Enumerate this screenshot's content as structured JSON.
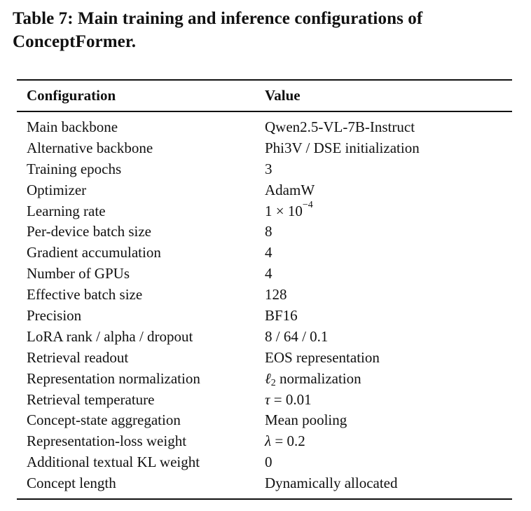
{
  "caption": "Table 7: Main training and inference configurations of ConceptFormer.",
  "headers": {
    "configuration": "Configuration",
    "value": "Value"
  },
  "rows": [
    {
      "config": "Main backbone",
      "value": "Qwen2.5-VL-7B-Instruct"
    },
    {
      "config": "Alternative backbone",
      "value": "Phi3V / DSE initialization"
    },
    {
      "config": "Training epochs",
      "value": "3"
    },
    {
      "config": "Optimizer",
      "value": "AdamW"
    },
    {
      "config": "Learning rate",
      "value_base": "1 × 10",
      "value_exp": "−4"
    },
    {
      "config": "Per-device batch size",
      "value": "8"
    },
    {
      "config": "Gradient accumulation",
      "value": "4"
    },
    {
      "config": "Number of GPUs",
      "value": "4"
    },
    {
      "config": "Effective batch size",
      "value": "128"
    },
    {
      "config": "Precision",
      "value": "BF16"
    },
    {
      "config": "LoRA rank / alpha / dropout",
      "value": "8 / 64 / 0.1"
    },
    {
      "config": "Retrieval readout",
      "value": "EOS representation"
    },
    {
      "config": "Representation normalization",
      "value_sym": "ℓ",
      "value_sub": "2",
      "value_rest": " normalization"
    },
    {
      "config": "Retrieval temperature",
      "value_sym": "τ",
      "value_rest": " = 0.01"
    },
    {
      "config": "Concept-state aggregation",
      "value": "Mean pooling"
    },
    {
      "config": "Representation-loss weight",
      "value_sym": "λ",
      "value_rest": " = 0.2"
    },
    {
      "config": "Additional textual KL weight",
      "value": "0"
    },
    {
      "config": "Concept length",
      "value": "Dynamically allocated"
    }
  ]
}
